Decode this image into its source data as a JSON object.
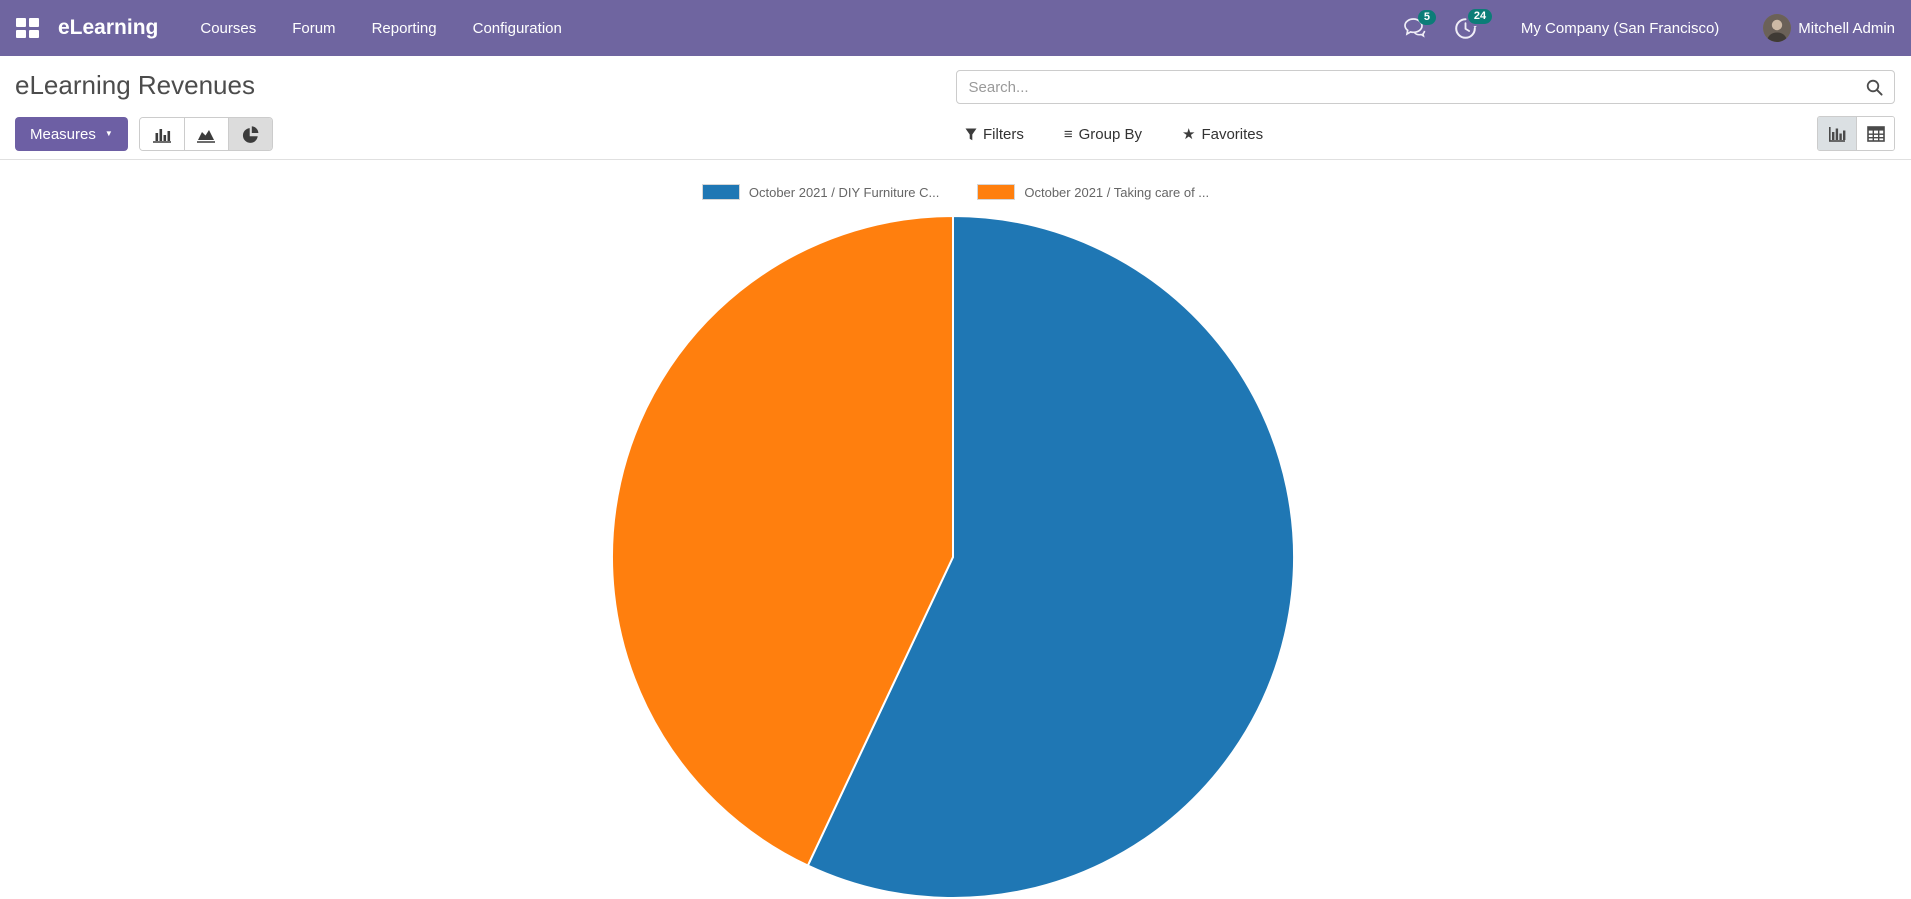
{
  "navbar": {
    "brand": "eLearning",
    "menus": [
      "Courses",
      "Forum",
      "Reporting",
      "Configuration"
    ],
    "messages_badge": "5",
    "activities_badge": "24",
    "company": "My Company (San Francisco)",
    "user": "Mitchell Admin"
  },
  "control_panel": {
    "title": "eLearning Revenues",
    "search_placeholder": "Search...",
    "measures_label": "Measures",
    "filters_label": "Filters",
    "group_by_label": "Group By",
    "favorites_label": "Favorites"
  },
  "icons": {
    "caret_down": "▼",
    "bars": "≡",
    "star": "★"
  },
  "colors": {
    "navbar_bg": "#6f65a0",
    "primary_button_bg": "#6d5fa4",
    "badge_bg": "#0c7d78",
    "active_chart_type_bg": "#dcdcdc",
    "active_view_bg": "#dbe0e3"
  },
  "chart_data": {
    "type": "pie",
    "title": "",
    "legend_position": "top",
    "labels": [
      "October 2021 / DIY Furniture C...",
      "October 2021 / Taking care of ..."
    ],
    "values": [
      57,
      43
    ],
    "value_note": "percent share estimated from slice arc angles (blue ~205deg, orange ~155deg)",
    "colors": [
      "#1f77b4",
      "#ff7f0e"
    ],
    "start_angle_deg": 0,
    "direction": "clockwise"
  }
}
